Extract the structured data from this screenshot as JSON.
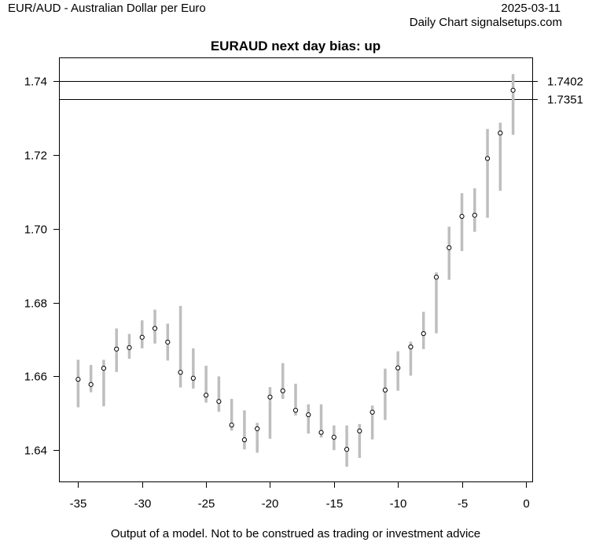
{
  "header": {
    "left_title": "EUR/AUD - Australian Dollar per Euro",
    "date": "2025-03-11",
    "source": "Daily Chart signalsetups.com"
  },
  "footer": {
    "disclaimer": "Output of a model. Not to be construed as trading or investment advice"
  },
  "colors": {
    "range_bar": "#bebebe",
    "point": "#000000",
    "line": "#000000"
  },
  "chart_data": {
    "type": "scatter",
    "title": "EURAUD next day bias: up",
    "xlabel": "",
    "ylabel": "",
    "xlim": [
      -36.5,
      0.5
    ],
    "ylim": [
      1.6315,
      1.7465
    ],
    "xticks": [
      -35,
      -30,
      -25,
      -20,
      -15,
      -10,
      -5,
      0
    ],
    "yticks": [
      1.64,
      1.66,
      1.68,
      1.7,
      1.72,
      1.74
    ],
    "ytick_labels": [
      "1.64",
      "1.66",
      "1.68",
      "1.70",
      "1.72",
      "1.74"
    ],
    "hlines": [
      {
        "value": 1.7402,
        "label": "1.7402"
      },
      {
        "value": 1.7351,
        "label": "1.7351"
      }
    ],
    "points": [
      {
        "x": -35,
        "value": 1.6592,
        "low": 1.6516,
        "high": 1.6645
      },
      {
        "x": -34,
        "value": 1.6578,
        "low": 1.6557,
        "high": 1.6631
      },
      {
        "x": -33,
        "value": 1.6622,
        "low": 1.6519,
        "high": 1.6645
      },
      {
        "x": -32,
        "value": 1.6674,
        "low": 1.6612,
        "high": 1.673
      },
      {
        "x": -31,
        "value": 1.6678,
        "low": 1.6648,
        "high": 1.6715
      },
      {
        "x": -30,
        "value": 1.6706,
        "low": 1.6676,
        "high": 1.6752
      },
      {
        "x": -29,
        "value": 1.673,
        "low": 1.6689,
        "high": 1.6781
      },
      {
        "x": -28,
        "value": 1.6693,
        "low": 1.6643,
        "high": 1.6743
      },
      {
        "x": -27,
        "value": 1.6611,
        "low": 1.657,
        "high": 1.6791
      },
      {
        "x": -26,
        "value": 1.6595,
        "low": 1.6567,
        "high": 1.6676
      },
      {
        "x": -25,
        "value": 1.6549,
        "low": 1.6529,
        "high": 1.6629
      },
      {
        "x": -24,
        "value": 1.6532,
        "low": 1.6504,
        "high": 1.66
      },
      {
        "x": -23,
        "value": 1.6468,
        "low": 1.6453,
        "high": 1.6539
      },
      {
        "x": -22,
        "value": 1.6428,
        "low": 1.6402,
        "high": 1.6508
      },
      {
        "x": -21,
        "value": 1.6458,
        "low": 1.6393,
        "high": 1.6474
      },
      {
        "x": -20,
        "value": 1.6544,
        "low": 1.6431,
        "high": 1.6571
      },
      {
        "x": -19,
        "value": 1.6561,
        "low": 1.6539,
        "high": 1.6636
      },
      {
        "x": -18,
        "value": 1.6508,
        "low": 1.6494,
        "high": 1.658
      },
      {
        "x": -17,
        "value": 1.6496,
        "low": 1.6445,
        "high": 1.6524
      },
      {
        "x": -16,
        "value": 1.6448,
        "low": 1.6434,
        "high": 1.6524
      },
      {
        "x": -15,
        "value": 1.6435,
        "low": 1.64,
        "high": 1.6467
      },
      {
        "x": -14,
        "value": 1.6402,
        "low": 1.6355,
        "high": 1.6467
      },
      {
        "x": -13,
        "value": 1.6452,
        "low": 1.6379,
        "high": 1.6471
      },
      {
        "x": -12,
        "value": 1.6503,
        "low": 1.6429,
        "high": 1.6521
      },
      {
        "x": -11,
        "value": 1.6563,
        "low": 1.6482,
        "high": 1.6621
      },
      {
        "x": -10,
        "value": 1.6623,
        "low": 1.6561,
        "high": 1.6668
      },
      {
        "x": -9,
        "value": 1.668,
        "low": 1.6602,
        "high": 1.6694
      },
      {
        "x": -8,
        "value": 1.6716,
        "low": 1.6674,
        "high": 1.6775
      },
      {
        "x": -7,
        "value": 1.6869,
        "low": 1.6717,
        "high": 1.6882
      },
      {
        "x": -6,
        "value": 1.6949,
        "low": 1.6862,
        "high": 1.7006
      },
      {
        "x": -5,
        "value": 1.7034,
        "low": 1.694,
        "high": 1.7097
      },
      {
        "x": -4,
        "value": 1.7037,
        "low": 1.6992,
        "high": 1.711
      },
      {
        "x": -3,
        "value": 1.7191,
        "low": 1.703,
        "high": 1.7271
      },
      {
        "x": -2,
        "value": 1.726,
        "low": 1.7103,
        "high": 1.7288
      },
      {
        "x": -1,
        "value": 1.7376,
        "low": 1.7255,
        "high": 1.742
      }
    ]
  }
}
